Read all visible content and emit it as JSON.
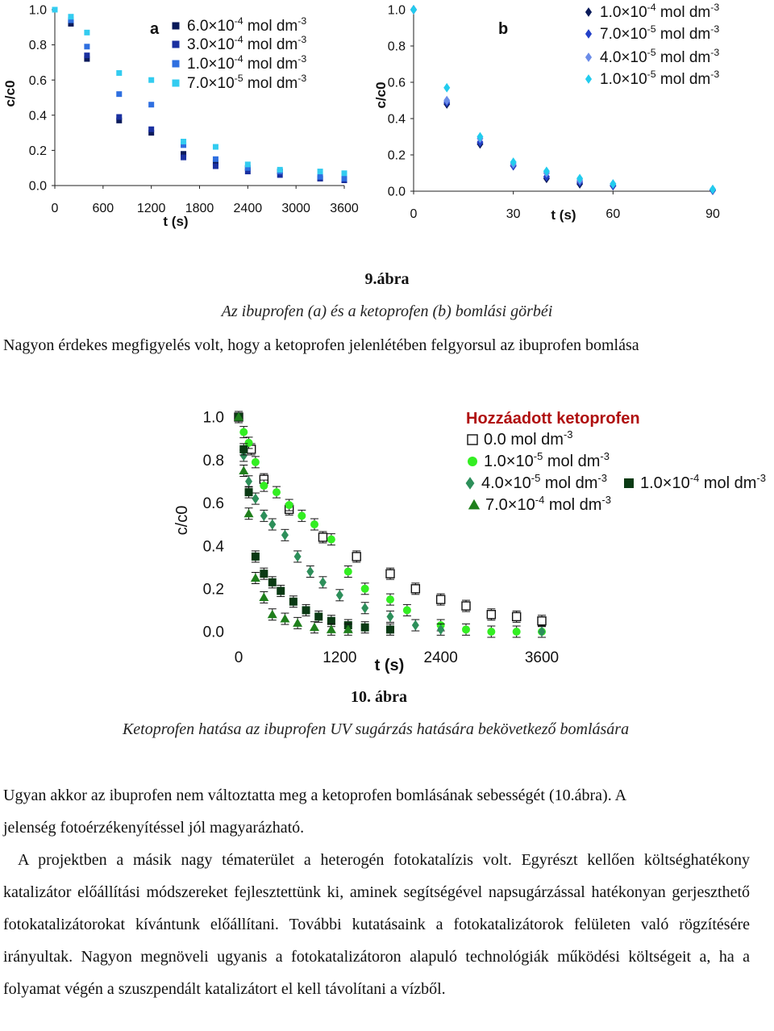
{
  "fig9_caption": {
    "number": "9.ábra",
    "title": "Az ibuprofen (a) és a ketoprofen (b) bomlási görbéi"
  },
  "sentence1": "Nagyon érdekes megfigyelés volt, hogy a  ketoprofen jelenlétében felgyorsul az ibuprofen bomlása",
  "fig10_caption": {
    "number": "10. ábra",
    "title": "Ketoprofen hatása az ibuprofen UV sugárzás hatására bekövetkező bomlására"
  },
  "paragraphs": {
    "p1_line1": "Ugyan akkor az ibuprofen nem változtatta meg a ketoprofen bomlásának sebességét (10.ábra). A",
    "p1_line2": "jelenség  fotoérzékenyítéssel jól magyarázható.",
    "p2": "A projektben a másik nagy tématerület a heterogén fotokatalízis volt. Egyrészt kellően költséghatékony katalizátor előállítási módszereket fejlesztettünk ki, aminek segítségével napsugárzással hatékonyan gerjeszthető fotokatalizátorokat kívántunk előállítani. További kutatásaink a fotokatalizátorok felületen való rögzítésére irányultak. Nagyon megnöveli ugyanis a fotokatalizátoron alapuló technológiák működési költségeit a, ha a folyamat végén a szuszpendált katalizátort el kell távolítani a vízből."
  },
  "chart_data": [
    {
      "panel": "a",
      "type": "scatter",
      "xlabel": "t (s)",
      "ylabel": "c/c0",
      "xlim": [
        0,
        3600
      ],
      "ylim": [
        0,
        1.0
      ],
      "xticks": [
        "0",
        "600",
        "1200",
        "1800",
        "2400",
        "3000",
        "3600"
      ],
      "yticks": [
        "0.0",
        "0.2",
        "0.4",
        "0.6",
        "0.8",
        "1.0"
      ],
      "legend_position": "top-right",
      "series": [
        {
          "name": "6.0×10-4 mol dm-3",
          "color": "#0a1a5a",
          "marker": "square",
          "x": [
            0,
            200,
            400,
            800,
            1200,
            1600,
            2000,
            2400,
            2800,
            3300,
            3600
          ],
          "y": [
            1.0,
            0.92,
            0.72,
            0.37,
            0.3,
            0.18,
            0.13,
            0.1,
            0.08,
            0.04,
            0.03
          ]
        },
        {
          "name": "3.0×10-4 mol dm-3",
          "color": "#1a30a0",
          "marker": "square",
          "x": [
            0,
            200,
            400,
            800,
            1200,
            1600,
            2000,
            2400,
            2800,
            3300,
            3600
          ],
          "y": [
            1.0,
            0.94,
            0.74,
            0.39,
            0.32,
            0.16,
            0.11,
            0.08,
            0.06,
            0.04,
            0.03
          ]
        },
        {
          "name": "1.0×10-4 mol dm-3",
          "color": "#2f6fe0",
          "marker": "square",
          "x": [
            0,
            200,
            400,
            800,
            1200,
            1600,
            2000,
            2400,
            2800,
            3300,
            3600
          ],
          "y": [
            1.0,
            0.94,
            0.79,
            0.52,
            0.46,
            0.23,
            0.15,
            0.1,
            0.08,
            0.05,
            0.04
          ]
        },
        {
          "name": "7.0×10-5 mol dm-3",
          "color": "#33ccf0",
          "marker": "square",
          "x": [
            0,
            200,
            400,
            800,
            1200,
            1600,
            2000,
            2400,
            2800,
            3300,
            3600
          ],
          "y": [
            1.0,
            0.96,
            0.87,
            0.64,
            0.6,
            0.25,
            0.22,
            0.12,
            0.09,
            0.08,
            0.07
          ]
        }
      ]
    },
    {
      "panel": "b",
      "type": "scatter",
      "xlabel": "t (s)",
      "ylabel": "c/c0",
      "xlim": [
        0,
        90
      ],
      "ylim": [
        0,
        1.0
      ],
      "xticks": [
        "0",
        "30",
        "60",
        "90"
      ],
      "yticks": [
        "0.0",
        "0.2",
        "0.4",
        "0.6",
        "0.8",
        "1.0"
      ],
      "legend_position": "top-right",
      "series": [
        {
          "name": "1.0×10-4 mol dm-3",
          "color": "#0a1a5a",
          "marker": "diamond",
          "x": [
            0,
            10,
            20,
            30,
            40,
            50,
            60,
            90
          ],
          "y": [
            1.0,
            0.48,
            0.26,
            0.14,
            0.07,
            0.04,
            0.03,
            0.005
          ]
        },
        {
          "name": "7.0×10-5 mol dm-3",
          "color": "#2340c8",
          "marker": "diamond",
          "x": [
            0,
            10,
            20,
            30,
            40,
            50,
            60,
            90
          ],
          "y": [
            1.0,
            0.49,
            0.27,
            0.14,
            0.08,
            0.05,
            0.03,
            0.005
          ]
        },
        {
          "name": "4.0×10-5 mol dm-3",
          "color": "#6b8ce8",
          "marker": "diamond",
          "x": [
            0,
            10,
            20,
            30,
            40,
            50,
            60,
            90
          ],
          "y": [
            1.0,
            0.5,
            0.29,
            0.15,
            0.1,
            0.06,
            0.04,
            0.01
          ]
        },
        {
          "name": "1.0×10-5 mol dm-3",
          "color": "#22ccee",
          "marker": "diamond",
          "x": [
            0,
            10,
            20,
            30,
            40,
            50,
            60,
            90
          ],
          "y": [
            1.0,
            0.57,
            0.3,
            0.16,
            0.11,
            0.07,
            0.04,
            0.01
          ]
        }
      ]
    },
    {
      "panel": "10",
      "type": "scatter",
      "xlabel": "t (s)",
      "ylabel": "c/c0",
      "xlim": [
        0,
        3600
      ],
      "ylim": [
        0,
        1.0
      ],
      "xticks": [
        "0",
        "1200",
        "2400",
        "3600"
      ],
      "yticks": [
        "0.0",
        "0.2",
        "0.4",
        "0.6",
        "0.8",
        "1.0"
      ],
      "legend_title": "Hozzáadott ketoprofen",
      "legend_position": "top-right",
      "series": [
        {
          "name": "0.0 mol dm-3",
          "color": "#111111",
          "marker": "open-square",
          "x": [
            0,
            150,
            300,
            600,
            1000,
            1400,
            1800,
            2100,
            2400,
            2700,
            3000,
            3300,
            3600
          ],
          "y": [
            1.0,
            0.85,
            0.71,
            0.57,
            0.44,
            0.35,
            0.27,
            0.2,
            0.15,
            0.12,
            0.08,
            0.07,
            0.05
          ]
        },
        {
          "name": "1.0×10-5 mol dm-3",
          "color": "#33ee22",
          "marker": "circle",
          "x": [
            0,
            60,
            120,
            200,
            300,
            450,
            600,
            750,
            900,
            1100,
            1300,
            1500,
            1800,
            2000,
            2400,
            2700,
            3000,
            3300,
            3600
          ],
          "y": [
            1.0,
            0.93,
            0.88,
            0.79,
            0.68,
            0.65,
            0.59,
            0.54,
            0.5,
            0.43,
            0.28,
            0.2,
            0.15,
            0.1,
            0.03,
            0.01,
            0.0,
            0.0,
            0.0
          ]
        },
        {
          "name": "4.0×10-5 mol dm-3",
          "color": "#2d8f5a",
          "marker": "diamond",
          "x": [
            0,
            60,
            120,
            200,
            300,
            400,
            550,
            700,
            850,
            1000,
            1200,
            1500,
            1800,
            2100,
            2400,
            3600
          ],
          "y": [
            1.0,
            0.82,
            0.7,
            0.62,
            0.54,
            0.5,
            0.45,
            0.35,
            0.28,
            0.23,
            0.17,
            0.11,
            0.07,
            0.03,
            0.01,
            0.0
          ]
        },
        {
          "name": "1.0×10-4 mol dm-3",
          "color": "#0a3a14",
          "marker": "square",
          "x": [
            0,
            60,
            120,
            200,
            300,
            400,
            500,
            650,
            800,
            950,
            1100,
            1300,
            1500,
            1800
          ],
          "y": [
            1.0,
            0.85,
            0.65,
            0.35,
            0.27,
            0.23,
            0.19,
            0.14,
            0.1,
            0.07,
            0.05,
            0.03,
            0.02,
            0.01
          ]
        },
        {
          "name": "7.0×10-4 mol dm-3",
          "color": "#1f7f1c",
          "marker": "triangle",
          "x": [
            0,
            60,
            120,
            200,
            300,
            400,
            550,
            700,
            900,
            1100,
            1300
          ],
          "y": [
            1.0,
            0.75,
            0.55,
            0.25,
            0.16,
            0.08,
            0.06,
            0.04,
            0.02,
            0.01,
            0.01
          ]
        }
      ]
    }
  ]
}
